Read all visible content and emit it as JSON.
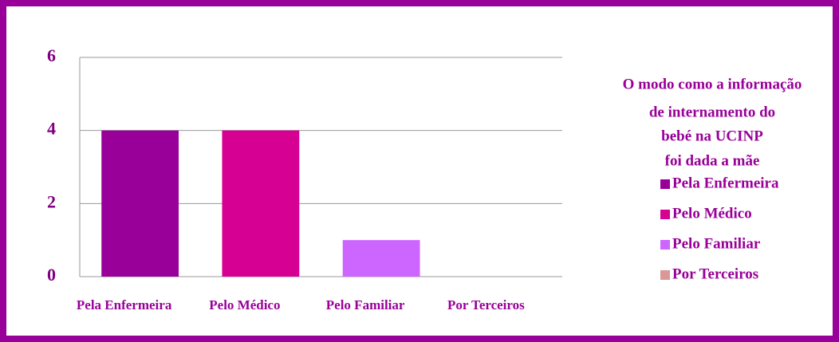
{
  "chart_data": {
    "type": "bar",
    "title": [
      "O modo como a informação",
      "de internamento do",
      "bebé na UCINP",
      "foi dada a mãe"
    ],
    "categories": [
      "Pela Enfermeira",
      "Pelo Médico",
      "Pelo Familiar",
      "Por Terceiros"
    ],
    "values": [
      4,
      4,
      1,
      0
    ],
    "colors": [
      "#990099",
      "#d60093",
      "#cc66ff",
      "#d99795"
    ],
    "ylim": [
      0,
      6
    ],
    "yticks": [
      0,
      2,
      4,
      6
    ],
    "grid": true,
    "legend": "right"
  }
}
